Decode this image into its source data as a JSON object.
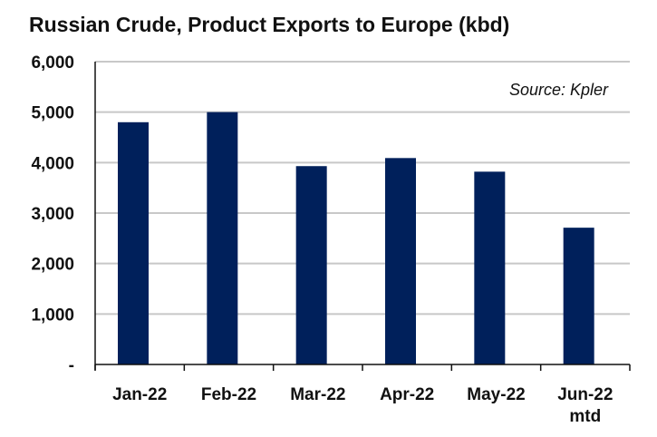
{
  "chart_data": {
    "type": "bar",
    "title": "Russian Crude, Product Exports to Europe (kbd)",
    "annotation": "Source: Kpler",
    "categories": [
      [
        "Jan-22"
      ],
      [
        "Feb-22"
      ],
      [
        "Mar-22"
      ],
      [
        "Apr-22"
      ],
      [
        "May-22"
      ],
      [
        "Jun-22",
        "mtd"
      ]
    ],
    "values": [
      4800,
      5000,
      3930,
      4090,
      3820,
      2710
    ],
    "yticks": [
      0,
      1000,
      2000,
      3000,
      4000,
      5000,
      6000
    ],
    "ytick_labels": [
      "-",
      "1,000",
      "2,000",
      "3,000",
      "4,000",
      "5,000",
      "6,000"
    ],
    "ylim": [
      0,
      6000
    ],
    "xlabel": "",
    "ylabel": "",
    "grid": true,
    "bar_color": "#00205b",
    "grid_color": "#c8c8c8"
  }
}
